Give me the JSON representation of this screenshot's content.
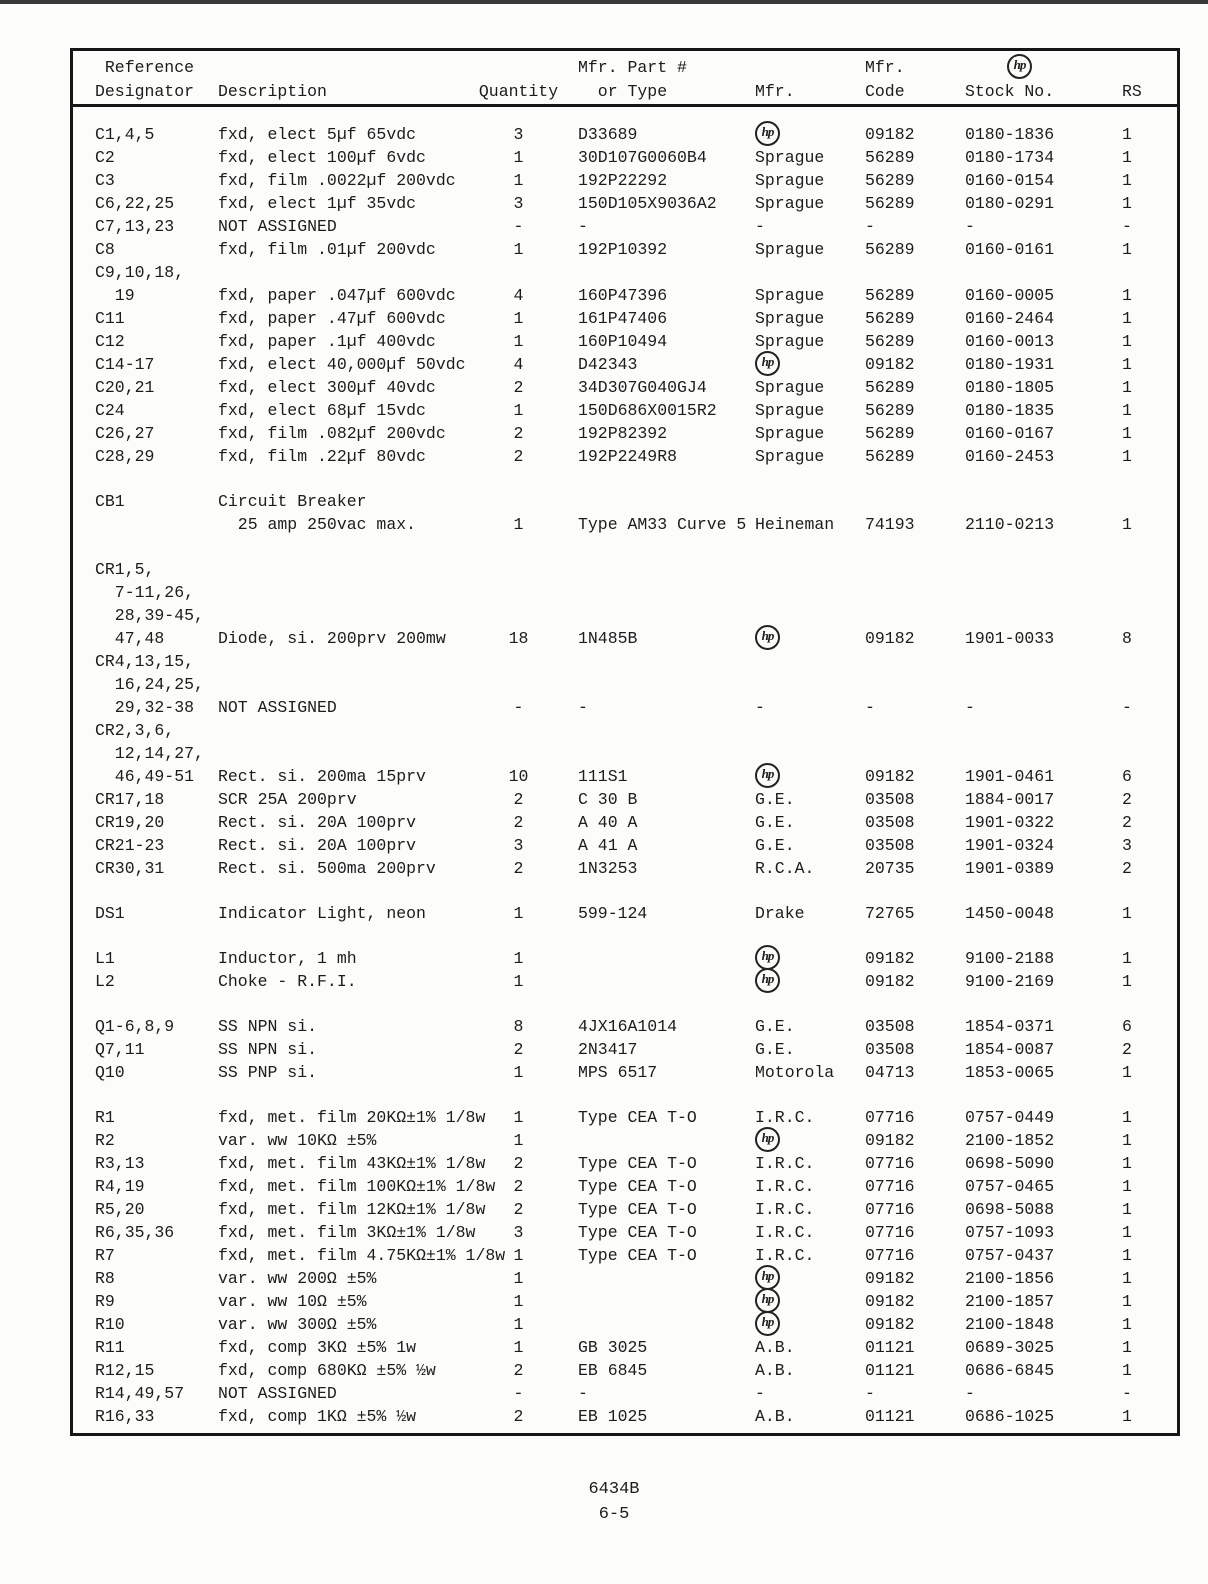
{
  "page": {
    "footer_doc_number": "6434B",
    "footer_page_number": "6-5"
  },
  "hp_logo_text": "hp",
  "table": {
    "header_lines": [
      [
        " Reference",
        "",
        "",
        "Mfr. Part #",
        "",
        "Mfr.",
        "{hp}",
        ""
      ],
      [
        "Designator",
        "Description",
        "Quantity",
        "  or Type",
        "Mfr.",
        "Code",
        "Stock No.",
        "RS"
      ]
    ],
    "groups": [
      [
        [
          "C1,4,5",
          "fxd, elect 5µf 65vdc",
          "3",
          "D33689",
          "{hp}",
          "09182",
          "0180-1836",
          "1"
        ],
        [
          "C2",
          "fxd, elect 100µf 6vdc",
          "1",
          "30D107G0060B4",
          "Sprague",
          "56289",
          "0180-1734",
          "1"
        ],
        [
          "C3",
          "fxd, film .0022µf 200vdc",
          "1",
          "192P22292",
          "Sprague",
          "56289",
          "0160-0154",
          "1"
        ],
        [
          "C6,22,25",
          "fxd, elect 1µf 35vdc",
          "3",
          "150D105X9036A2",
          "Sprague",
          "56289",
          "0180-0291",
          "1"
        ],
        [
          "C7,13,23",
          "NOT ASSIGNED",
          "-",
          "-",
          "-",
          "-",
          "-",
          "-"
        ],
        [
          "C8",
          "fxd, film .01µf 200vdc",
          "1",
          "192P10392",
          "Sprague",
          "56289",
          "0160-0161",
          "1"
        ],
        [
          "C9,10,18,",
          "",
          "",
          "",
          "",
          "",
          "",
          ""
        ],
        [
          "  19",
          "fxd, paper .047µf 600vdc",
          "4",
          "160P47396",
          "Sprague",
          "56289",
          "0160-0005",
          "1"
        ],
        [
          "C11",
          "fxd, paper .47µf 600vdc",
          "1",
          "161P47406",
          "Sprague",
          "56289",
          "0160-2464",
          "1"
        ],
        [
          "C12",
          "fxd, paper .1µf 400vdc",
          "1",
          "160P10494",
          "Sprague",
          "56289",
          "0160-0013",
          "1"
        ],
        [
          "C14-17",
          "fxd, elect 40,000µf 50vdc",
          "4",
          "D42343",
          "{hp}",
          "09182",
          "0180-1931",
          "1"
        ],
        [
          "C20,21",
          "fxd, elect 300µf 40vdc",
          "2",
          "34D307G040GJ4",
          "Sprague",
          "56289",
          "0180-1805",
          "1"
        ],
        [
          "C24",
          "fxd, elect 68µf 15vdc",
          "1",
          "150D686X0015R2",
          "Sprague",
          "56289",
          "0180-1835",
          "1"
        ],
        [
          "C26,27",
          "fxd, film .082µf 200vdc",
          "2",
          "192P82392",
          "Sprague",
          "56289",
          "0160-0167",
          "1"
        ],
        [
          "C28,29",
          "fxd, film .22µf 80vdc",
          "2",
          "192P2249R8",
          "Sprague",
          "56289",
          "0160-2453",
          "1"
        ]
      ],
      [
        [
          "CB1",
          "Circuit Breaker",
          "",
          "",
          "",
          "",
          "",
          ""
        ],
        [
          "",
          "  25 amp 250vac max.",
          "1",
          "Type AM33 Curve 5",
          "Heineman",
          "74193",
          "2110-0213",
          "1"
        ]
      ],
      [
        [
          "CR1,5,",
          "",
          "",
          "",
          "",
          "",
          "",
          ""
        ],
        [
          "  7-11,26,",
          "",
          "",
          "",
          "",
          "",
          "",
          ""
        ],
        [
          "  28,39-45,",
          "",
          "",
          "",
          "",
          "",
          "",
          ""
        ],
        [
          "  47,48",
          "Diode, si. 200prv 200mw",
          "18",
          "1N485B",
          "{hp}",
          "09182",
          "1901-0033",
          "8"
        ],
        [
          "CR4,13,15,",
          "",
          "",
          "",
          "",
          "",
          "",
          ""
        ],
        [
          "  16,24,25,",
          "",
          "",
          "",
          "",
          "",
          "",
          ""
        ],
        [
          "  29,32-38",
          "NOT ASSIGNED",
          "-",
          "-",
          "-",
          "-",
          "-",
          "-"
        ],
        [
          "CR2,3,6,",
          "",
          "",
          "",
          "",
          "",
          "",
          ""
        ],
        [
          "  12,14,27,",
          "",
          "",
          "",
          "",
          "",
          "",
          ""
        ],
        [
          "  46,49-51",
          "Rect. si. 200ma 15prv",
          "10",
          "111S1",
          "{hp}",
          "09182",
          "1901-0461",
          "6"
        ],
        [
          "CR17,18",
          "SCR 25A 200prv",
          "2",
          "C 30 B",
          "G.E.",
          "03508",
          "1884-0017",
          "2"
        ],
        [
          "CR19,20",
          "Rect. si. 20A 100prv",
          "2",
          "A 40 A",
          "G.E.",
          "03508",
          "1901-0322",
          "2"
        ],
        [
          "CR21-23",
          "Rect. si. 20A 100prv",
          "3",
          "A 41 A",
          "G.E.",
          "03508",
          "1901-0324",
          "3"
        ],
        [
          "CR30,31",
          "Rect. si. 500ma 200prv",
          "2",
          "1N3253",
          "R.C.A.",
          "20735",
          "1901-0389",
          "2"
        ]
      ],
      [
        [
          "DS1",
          "Indicator Light, neon",
          "1",
          "599-124",
          "Drake",
          "72765",
          "1450-0048",
          "1"
        ]
      ],
      [
        [
          "L1",
          "Inductor, 1 mh",
          "1",
          "",
          "{hp}",
          "09182",
          "9100-2188",
          "1"
        ],
        [
          "L2",
          "Choke - R.F.I.",
          "1",
          "",
          "{hp}",
          "09182",
          "9100-2169",
          "1"
        ]
      ],
      [
        [
          "Q1-6,8,9",
          "SS NPN si.",
          "8",
          "4JX16A1014",
          "G.E.",
          "03508",
          "1854-0371",
          "6"
        ],
        [
          "Q7,11",
          "SS NPN si.",
          "2",
          "2N3417",
          "G.E.",
          "03508",
          "1854-0087",
          "2"
        ],
        [
          "Q10",
          "SS PNP si.",
          "1",
          "MPS 6517",
          "Motorola",
          "04713",
          "1853-0065",
          "1"
        ]
      ],
      [
        [
          "R1",
          "fxd, met. film 20KΩ±1% 1/8w",
          "1",
          "Type CEA T-O",
          "I.R.C.",
          "07716",
          "0757-0449",
          "1"
        ],
        [
          "R2",
          "var. ww 10KΩ ±5%",
          "1",
          "",
          "{hp}",
          "09182",
          "2100-1852",
          "1"
        ],
        [
          "R3,13",
          "fxd, met. film 43KΩ±1% 1/8w",
          "2",
          "Type CEA T-O",
          "I.R.C.",
          "07716",
          "0698-5090",
          "1"
        ],
        [
          "R4,19",
          "fxd, met. film 100KΩ±1% 1/8w",
          "2",
          "Type CEA T-O",
          "I.R.C.",
          "07716",
          "0757-0465",
          "1"
        ],
        [
          "R5,20",
          "fxd, met. film 12KΩ±1% 1/8w",
          "2",
          "Type CEA T-O",
          "I.R.C.",
          "07716",
          "0698-5088",
          "1"
        ],
        [
          "R6,35,36",
          "fxd, met. film 3KΩ±1% 1/8w",
          "3",
          "Type CEA T-O",
          "I.R.C.",
          "07716",
          "0757-1093",
          "1"
        ],
        [
          "R7",
          "fxd, met. film 4.75KΩ±1% 1/8w",
          "1",
          "Type CEA T-O",
          "I.R.C.",
          "07716",
          "0757-0437",
          "1"
        ],
        [
          "R8",
          "var. ww 200Ω ±5%",
          "1",
          "",
          "{hp}",
          "09182",
          "2100-1856",
          "1"
        ],
        [
          "R9",
          "var. ww 10Ω ±5%",
          "1",
          "",
          "{hp}",
          "09182",
          "2100-1857",
          "1"
        ],
        [
          "R10",
          "var. ww 300Ω ±5%",
          "1",
          "",
          "{hp}",
          "09182",
          "2100-1848",
          "1"
        ],
        [
          "R11",
          "fxd, comp 3KΩ ±5% 1w",
          "1",
          "GB 3025",
          "A.B.",
          "01121",
          "0689-3025",
          "1"
        ],
        [
          "R12,15",
          "fxd, comp 680KΩ ±5% ½w",
          "2",
          "EB 6845",
          "A.B.",
          "01121",
          "0686-6845",
          "1"
        ],
        [
          "R14,49,57",
          "NOT ASSIGNED",
          "-",
          "-",
          "-",
          "-",
          "-",
          "-"
        ],
        [
          "R16,33",
          "fxd, comp 1KΩ ±5% ½w",
          "2",
          "EB 1025",
          "A.B.",
          "01121",
          "0686-1025",
          "1"
        ]
      ]
    ]
  }
}
